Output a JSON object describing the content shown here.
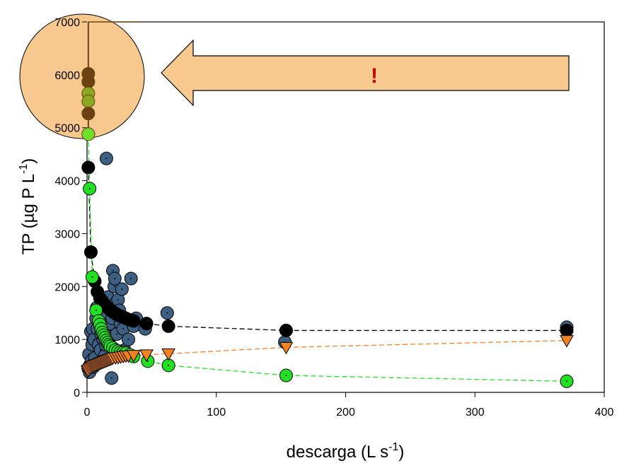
{
  "chart_data": {
    "type": "scatter",
    "title": "",
    "xlabel": {
      "main": "descarga (L s",
      "sup": "-1",
      "tail": ")"
    },
    "ylabel": {
      "main": "TP (µg P L",
      "sup": "-1",
      "tail": ")"
    },
    "xlim": [
      0,
      400
    ],
    "ylim": [
      0,
      7000
    ],
    "xticks": [
      "0",
      "100",
      "200",
      "300",
      "400"
    ],
    "yticks": [
      "0",
      "1000",
      "2000",
      "3000",
      "4000",
      "5000",
      "6000",
      "7000"
    ],
    "grid": false,
    "legend": "none",
    "colors": {
      "observed": "#3c5f82",
      "black_series": "#000000",
      "green_series": "#22e022",
      "orange_series": "#f58220",
      "highlight_fill": "#f7c98e",
      "highlight_brown": "#6b4210",
      "highlight_olive": "#8aa822",
      "highlight_green": "#6ee02a",
      "arrow_fill": "#f7c98e",
      "exclamation": "#cc0000"
    },
    "series": [
      {
        "style": "blue-circles",
        "points": [
          [
            1,
            450
          ],
          [
            1.5,
            720
          ],
          [
            2,
            380
          ],
          [
            2.5,
            520
          ],
          [
            3,
            1150
          ],
          [
            3.5,
            600
          ],
          [
            4,
            900
          ],
          [
            4.5,
            1200
          ],
          [
            5,
            480
          ],
          [
            5.5,
            1000
          ],
          [
            6,
            650
          ],
          [
            7,
            1400
          ],
          [
            7.5,
            1600
          ],
          [
            8,
            1200
          ],
          [
            8.5,
            550
          ],
          [
            9,
            900
          ],
          [
            9.5,
            1500
          ],
          [
            10,
            1300
          ],
          [
            10.5,
            800
          ],
          [
            11,
            1100
          ],
          [
            12,
            600
          ],
          [
            12.5,
            1000
          ],
          [
            13,
            1250
          ],
          [
            14,
            700
          ],
          [
            14.5,
            900
          ],
          [
            15,
            4420
          ],
          [
            15.5,
            1500
          ],
          [
            16,
            1800
          ],
          [
            17,
            1000
          ],
          [
            17.5,
            1300
          ],
          [
            18,
            1050
          ],
          [
            19,
            270
          ],
          [
            19.5,
            1400
          ],
          [
            20,
            2300
          ],
          [
            20.5,
            1650
          ],
          [
            21,
            2000
          ],
          [
            21.5,
            2150
          ],
          [
            22,
            1500
          ],
          [
            23,
            1100
          ],
          [
            24,
            1750
          ],
          [
            25,
            1550
          ],
          [
            26,
            1300
          ],
          [
            27,
            1950
          ],
          [
            28,
            1200
          ],
          [
            29,
            800
          ],
          [
            30,
            1400
          ],
          [
            32,
            1000
          ],
          [
            34,
            2150
          ],
          [
            36,
            1250
          ],
          [
            38,
            1400
          ],
          [
            45,
            1200
          ],
          [
            62,
            1500
          ],
          [
            153,
            950
          ],
          [
            371,
            1230
          ]
        ]
      },
      {
        "style": "black-circles-line",
        "points": [
          [
            1,
            4250
          ],
          [
            3,
            2650
          ],
          [
            6,
            2100
          ],
          [
            8,
            1900
          ],
          [
            10,
            1780
          ],
          [
            12,
            1700
          ],
          [
            14,
            1650
          ],
          [
            16,
            1600
          ],
          [
            18,
            1560
          ],
          [
            20,
            1520
          ],
          [
            22,
            1490
          ],
          [
            24,
            1460
          ],
          [
            26,
            1440
          ],
          [
            28,
            1420
          ],
          [
            30,
            1400
          ],
          [
            33,
            1370
          ],
          [
            36,
            1350
          ],
          [
            46,
            1300
          ],
          [
            63,
            1250
          ],
          [
            154,
            1170
          ],
          [
            371,
            1170
          ]
        ]
      },
      {
        "style": "green-circles-line",
        "points": [
          [
            1,
            4880
          ],
          [
            2,
            3850
          ],
          [
            4,
            2180
          ],
          [
            7,
            1550
          ],
          [
            9,
            1350
          ],
          [
            10,
            1280
          ],
          [
            11,
            1200
          ],
          [
            12,
            1130
          ],
          [
            13,
            1080
          ],
          [
            14,
            1030
          ],
          [
            15,
            980
          ],
          [
            16,
            940
          ],
          [
            17,
            900
          ],
          [
            18,
            870
          ],
          [
            20,
            840
          ],
          [
            22,
            800
          ],
          [
            24,
            780
          ],
          [
            26,
            760
          ],
          [
            28,
            750
          ],
          [
            30,
            740
          ],
          [
            33,
            710
          ],
          [
            36,
            680
          ],
          [
            47,
            590
          ],
          [
            63,
            510
          ],
          [
            154,
            320
          ],
          [
            371,
            210
          ]
        ]
      },
      {
        "style": "orange-triangles-line",
        "points": [
          [
            0.5,
            400
          ],
          [
            1,
            420
          ],
          [
            2,
            450
          ],
          [
            3,
            470
          ],
          [
            4,
            490
          ],
          [
            5,
            500
          ],
          [
            6,
            510
          ],
          [
            7,
            520
          ],
          [
            8,
            530
          ],
          [
            9,
            540
          ],
          [
            10,
            550
          ],
          [
            11,
            560
          ],
          [
            12,
            570
          ],
          [
            13,
            580
          ],
          [
            14,
            590
          ],
          [
            15,
            600
          ],
          [
            16,
            610
          ],
          [
            17,
            620
          ],
          [
            18,
            630
          ],
          [
            19,
            640
          ],
          [
            20,
            650
          ],
          [
            22,
            655
          ],
          [
            24,
            660
          ],
          [
            26,
            670
          ],
          [
            28,
            680
          ],
          [
            30,
            690
          ],
          [
            32,
            690
          ],
          [
            36,
            700
          ],
          [
            46,
            710
          ],
          [
            63,
            730
          ],
          [
            154,
            850
          ],
          [
            371,
            980
          ]
        ]
      }
    ],
    "highlight_points": [
      {
        "value": 6020,
        "color": "brown"
      },
      {
        "value": 5870,
        "color": "brown"
      },
      {
        "value": 5650,
        "color": "green"
      },
      {
        "value": 5500,
        "color": "green"
      },
      {
        "value": 5270,
        "color": "brown"
      },
      {
        "value": 4880,
        "color": "green"
      }
    ],
    "annotation": "!"
  }
}
